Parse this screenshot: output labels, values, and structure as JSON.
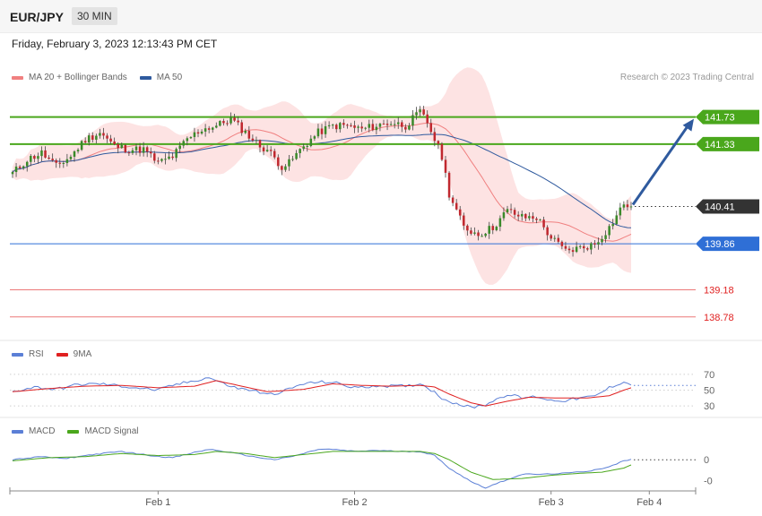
{
  "header": {
    "symbol": "EUR/JPY",
    "timeframe": "30 MIN"
  },
  "datetime": "Friday, February 3, 2023 12:13:43 PM CET",
  "credit": "Research © 2023 Trading Central",
  "legends": {
    "price": [
      {
        "label": "MA 20 + Bollinger Bands",
        "color": "#f08080"
      },
      {
        "label": "MA 50",
        "color": "#2f5a9e"
      }
    ],
    "rsi": [
      {
        "label": "RSI",
        "color": "#5b7fd6"
      },
      {
        "label": "9MA",
        "color": "#e02020"
      }
    ],
    "macd": [
      {
        "label": "MACD",
        "color": "#5b7fd6"
      },
      {
        "label": "MACD Signal",
        "color": "#4aa71c"
      }
    ]
  },
  "chart_data": [
    {
      "type": "candlestick",
      "title": "EUR/JPY",
      "ylim": [
        138.5,
        142.2
      ],
      "x_ticks": [
        "Feb 1",
        "Feb 2",
        "Feb 3",
        "Feb 4"
      ],
      "levels": [
        {
          "value": 141.73,
          "label": "141.73",
          "color": "#4aa71c",
          "kind": "resistance"
        },
        {
          "value": 141.33,
          "label": "141.33",
          "color": "#4aa71c",
          "kind": "resistance"
        },
        {
          "value": 140.41,
          "label": "140.41",
          "color": "#333333",
          "kind": "last-price"
        },
        {
          "value": 139.86,
          "label": "139.86",
          "color": "#2f6fd6",
          "kind": "pivot"
        },
        {
          "value": 139.18,
          "label": "139.18",
          "color": "#e02020",
          "kind": "support"
        },
        {
          "value": 138.78,
          "label": "138.78",
          "color": "#e02020",
          "kind": "support"
        }
      ],
      "close_anchors": [
        [
          0,
          140.9
        ],
        [
          4,
          141.1
        ],
        [
          8,
          141.2
        ],
        [
          12,
          141.0
        ],
        [
          16,
          141.15
        ],
        [
          20,
          141.4
        ],
        [
          24,
          141.5
        ],
        [
          28,
          141.3
        ],
        [
          32,
          141.25
        ],
        [
          36,
          141.25
        ],
        [
          40,
          141.05
        ],
        [
          44,
          141.15
        ],
        [
          48,
          141.4
        ],
        [
          52,
          141.55
        ],
        [
          56,
          141.6
        ],
        [
          60,
          141.7
        ],
        [
          64,
          141.5
        ],
        [
          68,
          141.3
        ],
        [
          70,
          141.25
        ],
        [
          74,
          141.0
        ],
        [
          76,
          141.05
        ],
        [
          80,
          141.3
        ],
        [
          84,
          141.5
        ],
        [
          88,
          141.6
        ],
        [
          92,
          141.6
        ],
        [
          96,
          141.55
        ],
        [
          100,
          141.6
        ],
        [
          104,
          141.65
        ],
        [
          108,
          141.6
        ],
        [
          112,
          141.8
        ],
        [
          114,
          141.65
        ],
        [
          118,
          141.15
        ],
        [
          120,
          140.6
        ],
        [
          124,
          140.1
        ],
        [
          128,
          140.0
        ],
        [
          132,
          140.1
        ],
        [
          136,
          140.35
        ],
        [
          140,
          140.25
        ],
        [
          144,
          140.25
        ],
        [
          148,
          139.95
        ],
        [
          152,
          139.75
        ],
        [
          156,
          139.8
        ],
        [
          160,
          139.85
        ],
        [
          164,
          140.1
        ],
        [
          168,
          140.45
        ],
        [
          170,
          140.41
        ]
      ],
      "ma20_note": "MA 20 with Bollinger Bands",
      "ma50_note": "MA 50",
      "forecast_arrow": {
        "from": 140.41,
        "to": 141.73
      }
    },
    {
      "type": "line",
      "title": "RSI",
      "ylim": [
        20,
        80
      ],
      "y_ticks": [
        "70",
        "50",
        "30"
      ],
      "series": [
        {
          "name": "RSI",
          "color": "#5b7fd6",
          "anchors": [
            [
              0,
              48
            ],
            [
              6,
              54
            ],
            [
              12,
              51
            ],
            [
              18,
              57
            ],
            [
              24,
              58
            ],
            [
              30,
              55
            ],
            [
              36,
              52
            ],
            [
              40,
              50
            ],
            [
              44,
              56
            ],
            [
              50,
              62
            ],
            [
              54,
              66
            ],
            [
              58,
              58
            ],
            [
              62,
              52
            ],
            [
              66,
              50
            ],
            [
              70,
              44
            ],
            [
              74,
              48
            ],
            [
              80,
              58
            ],
            [
              84,
              60
            ],
            [
              88,
              60
            ],
            [
              92,
              55
            ],
            [
              96,
              53
            ],
            [
              100,
              56
            ],
            [
              104,
              55
            ],
            [
              108,
              55
            ],
            [
              112,
              58
            ],
            [
              114,
              54
            ],
            [
              118,
              40
            ],
            [
              122,
              33
            ],
            [
              126,
              28
            ],
            [
              130,
              32
            ],
            [
              136,
              45
            ],
            [
              140,
              40
            ],
            [
              144,
              42
            ],
            [
              148,
              37
            ],
            [
              152,
              37
            ],
            [
              156,
              40
            ],
            [
              160,
              42
            ],
            [
              164,
              53
            ],
            [
              168,
              61
            ],
            [
              170,
              56
            ]
          ]
        },
        {
          "name": "9MA",
          "color": "#e02020",
          "anchors": [
            [
              0,
              48
            ],
            [
              10,
              52
            ],
            [
              20,
              55
            ],
            [
              30,
              56
            ],
            [
              40,
              53
            ],
            [
              50,
              55
            ],
            [
              56,
              62
            ],
            [
              62,
              56
            ],
            [
              70,
              48
            ],
            [
              80,
              51
            ],
            [
              88,
              58
            ],
            [
              96,
              56
            ],
            [
              104,
              55
            ],
            [
              112,
              56
            ],
            [
              116,
              54
            ],
            [
              120,
              45
            ],
            [
              126,
              34
            ],
            [
              130,
              30
            ],
            [
              136,
              36
            ],
            [
              142,
              41
            ],
            [
              150,
              40
            ],
            [
              158,
              40
            ],
            [
              164,
              43
            ],
            [
              168,
              50
            ],
            [
              170,
              53
            ]
          ]
        }
      ]
    },
    {
      "type": "line",
      "title": "MACD",
      "ylim": [
        -0.3,
        0.2
      ],
      "y_ticks": [
        "0",
        "-0"
      ],
      "series": [
        {
          "name": "MACD",
          "color": "#5b7fd6",
          "anchors": [
            [
              0,
              0.0
            ],
            [
              8,
              0.03
            ],
            [
              14,
              0.01
            ],
            [
              22,
              0.05
            ],
            [
              30,
              0.08
            ],
            [
              38,
              0.04
            ],
            [
              44,
              0.02
            ],
            [
              50,
              0.07
            ],
            [
              54,
              0.1
            ],
            [
              60,
              0.07
            ],
            [
              66,
              0.03
            ],
            [
              72,
              0.0
            ],
            [
              78,
              0.04
            ],
            [
              84,
              0.1
            ],
            [
              88,
              0.1
            ],
            [
              94,
              0.08
            ],
            [
              100,
              0.09
            ],
            [
              106,
              0.08
            ],
            [
              112,
              0.08
            ],
            [
              116,
              0.04
            ],
            [
              120,
              -0.08
            ],
            [
              126,
              -0.21
            ],
            [
              130,
              -0.27
            ],
            [
              136,
              -0.19
            ],
            [
              140,
              -0.14
            ],
            [
              146,
              -0.14
            ],
            [
              152,
              -0.13
            ],
            [
              158,
              -0.11
            ],
            [
              164,
              -0.07
            ],
            [
              168,
              -0.01
            ],
            [
              170,
              0.0
            ]
          ]
        },
        {
          "name": "MACD Signal",
          "color": "#4aa71c",
          "anchors": [
            [
              0,
              -0.01
            ],
            [
              10,
              0.02
            ],
            [
              20,
              0.03
            ],
            [
              30,
              0.06
            ],
            [
              40,
              0.04
            ],
            [
              50,
              0.05
            ],
            [
              56,
              0.08
            ],
            [
              64,
              0.06
            ],
            [
              72,
              0.02
            ],
            [
              80,
              0.05
            ],
            [
              88,
              0.08
            ],
            [
              96,
              0.08
            ],
            [
              104,
              0.08
            ],
            [
              112,
              0.08
            ],
            [
              116,
              0.06
            ],
            [
              120,
              0.0
            ],
            [
              126,
              -0.12
            ],
            [
              132,
              -0.19
            ],
            [
              140,
              -0.18
            ],
            [
              148,
              -0.15
            ],
            [
              156,
              -0.13
            ],
            [
              162,
              -0.12
            ],
            [
              168,
              -0.08
            ],
            [
              170,
              -0.05
            ]
          ]
        }
      ]
    }
  ]
}
